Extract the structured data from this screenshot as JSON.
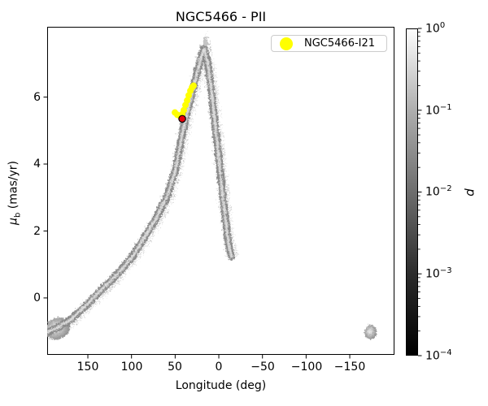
{
  "title": "NGC5466 - PII",
  "axes": {
    "xlabel": "Longitude (deg)",
    "ylabel": {
      "mu": "μ",
      "sub": "b",
      "rest": " (mas/yr)"
    },
    "xtick_labels": [
      "150",
      "100",
      "50",
      "0",
      "−50",
      "−100",
      "−150"
    ],
    "ytick_labels": [
      "6",
      "4",
      "2",
      "0"
    ]
  },
  "legend": {
    "label": "NGC5466-I21",
    "marker_color": "#ffff00"
  },
  "colorbar": {
    "label": "p",
    "ticks": [
      {
        "base": "10",
        "exp": "0"
      },
      {
        "base": "10",
        "exp": "−1"
      },
      {
        "base": "10",
        "exp": "−2"
      },
      {
        "base": "10",
        "exp": "−3"
      },
      {
        "base": "10",
        "exp": "−4"
      }
    ]
  },
  "chart_data": {
    "type": "heatmap",
    "title": "NGC5466 - PII",
    "xlabel": "Longitude (deg)",
    "ylabel": "mu_b (mas/yr)",
    "xlim": [
      196.6,
      -201.2
    ],
    "x_inverted": true,
    "ylim": [
      -1.7,
      8.1
    ],
    "xticks": [
      150,
      100,
      50,
      0,
      -50,
      -100,
      -150
    ],
    "yticks": [
      6,
      4,
      2,
      0
    ],
    "grid": false,
    "legend_position": "upper right",
    "colorbar": {
      "label": "p",
      "scale": "log",
      "min": 0.0001,
      "max": 1.0
    },
    "description": "Grayscale probability-density stream (white=high p, black=low p) of mu_b vs Galactic longitude; narrow track rising from a diffuse clump at the left edge to a sharp peak near longitude 18 deg, then falling steeply; an isolated clump near longitude -173 deg is the wrap-around of the left-edge clump.",
    "stream_track": [
      [
        197.5,
        -1.0
      ],
      [
        185,
        -0.85
      ],
      [
        171,
        -0.63
      ],
      [
        150,
        -0.12
      ],
      [
        135,
        0.28
      ],
      [
        120,
        0.65
      ],
      [
        100,
        1.26
      ],
      [
        88,
        1.75
      ],
      [
        74,
        2.35
      ],
      [
        60,
        3.07
      ],
      [
        50,
        3.92
      ],
      [
        44,
        4.77
      ],
      [
        38,
        5.49
      ],
      [
        33,
        6.0
      ],
      [
        28.9,
        6.46
      ],
      [
        24,
        6.94
      ],
      [
        20.5,
        7.3
      ],
      [
        17.7,
        7.47
      ],
      [
        14,
        7.06
      ],
      [
        10,
        6.34
      ],
      [
        6.5,
        5.49
      ],
      [
        2.8,
        4.65
      ],
      [
        -1,
        3.68
      ],
      [
        -4.7,
        2.83
      ],
      [
        -8.4,
        1.98
      ],
      [
        -11,
        1.5
      ],
      [
        -13.5,
        1.26
      ]
    ],
    "stream_peak": {
      "lon": 17.7,
      "mu_b": 7.47
    },
    "left_clump": {
      "lon": 186,
      "mu_b": -0.9
    },
    "right_clump": {
      "lon": -173,
      "mu_b": -1.0
    },
    "i21_points": [
      [
        50.3,
        5.54
      ],
      [
        47.5,
        5.47
      ],
      [
        44.7,
        5.44
      ],
      [
        41.9,
        5.49
      ],
      [
        40.1,
        5.61
      ],
      [
        38.2,
        5.76
      ],
      [
        36.3,
        5.9
      ],
      [
        34.5,
        6.05
      ],
      [
        32.6,
        6.19
      ],
      [
        30.7,
        6.29
      ],
      [
        28.9,
        6.34
      ]
    ],
    "i21_label": "NGC5466-I21",
    "red_marker": {
      "lon": 41.9,
      "mu_b": 5.35
    },
    "colors": {
      "i21": "#ffff00",
      "red_marker": "#e8000b",
      "red_marker_edge": "#000000",
      "stream_mid": "#8a8a8a",
      "stream_core": "#c2c2c2",
      "stream_bright": "#e4e4e4"
    }
  }
}
